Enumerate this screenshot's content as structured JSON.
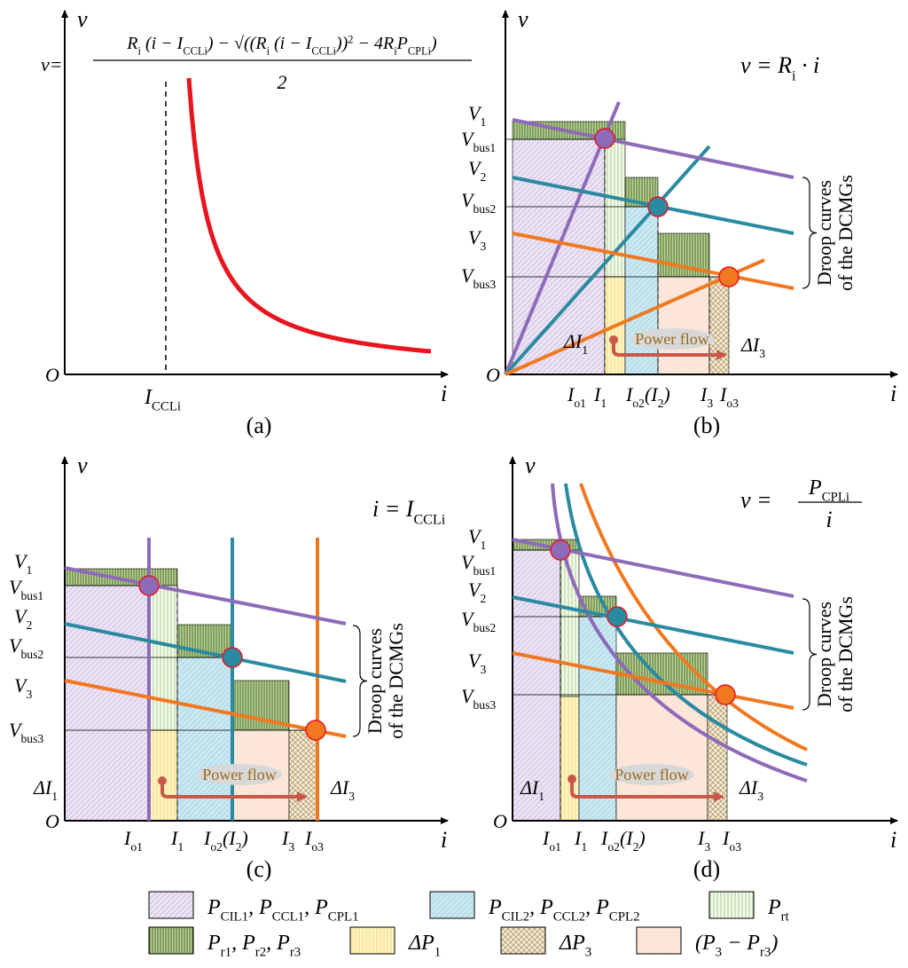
{
  "panels": [
    {
      "caption": "(a)",
      "y_axis": [
        {
          "t": "v"
        }
      ],
      "x_axis": [
        {
          "t": "i"
        }
      ],
      "origin": [
        {
          "t": "O"
        }
      ],
      "equation": {
        "lhs": [
          {
            "t": "v="
          }
        ],
        "numerator": [
          {
            "t": "R"
          },
          {
            "s": "i"
          },
          {
            "t": " (i − I"
          },
          {
            "s": "CCLi"
          },
          {
            "t": ") − √((R"
          },
          {
            "s": "i"
          },
          {
            "t": " (i − I"
          },
          {
            "s": "CCLi"
          },
          {
            "t": "))"
          },
          {
            "p": "2"
          },
          {
            "t": " − 4R"
          },
          {
            "s": "i"
          },
          {
            "t": "P"
          },
          {
            "s": "CPLi"
          },
          {
            "t": ")"
          }
        ],
        "denominator": [
          {
            "t": "2"
          }
        ]
      },
      "x_labels": [
        [
          {
            "t": "I"
          },
          {
            "s": "CCLi"
          }
        ]
      ]
    },
    {
      "caption": "(b)",
      "y_axis": [
        {
          "t": "v"
        }
      ],
      "x_axis": [
        {
          "t": "i"
        }
      ],
      "origin": [
        {
          "t": "O"
        }
      ],
      "equation": {
        "lhs": [
          {
            "t": "v = R"
          },
          {
            "s": "i"
          },
          {
            "t": " · i"
          }
        ]
      },
      "y_labels": [
        [
          {
            "t": "V"
          },
          {
            "s": "1"
          }
        ],
        [
          {
            "t": "V"
          },
          {
            "s": "bus1"
          }
        ],
        [
          {
            "t": "V"
          },
          {
            "s": "2"
          }
        ],
        [
          {
            "t": "V"
          },
          {
            "s": "bus2"
          }
        ],
        [
          {
            "t": "V"
          },
          {
            "s": "3"
          }
        ],
        [
          {
            "t": "V"
          },
          {
            "s": "bus3"
          }
        ]
      ],
      "x_labels": [
        [
          {
            "t": "I"
          },
          {
            "s": "o1"
          }
        ],
        [
          {
            "t": "I"
          },
          {
            "s": "1"
          }
        ],
        [
          {
            "t": "I"
          },
          {
            "s": "o2"
          },
          {
            "t": "(I"
          },
          {
            "s": "2"
          },
          {
            "t": ")"
          }
        ],
        [
          {
            "t": "I"
          },
          {
            "s": "3"
          }
        ],
        [
          {
            "t": "I"
          },
          {
            "s": "o3"
          }
        ]
      ],
      "delta_labels": [
        [
          {
            "t": "ΔI"
          },
          {
            "s": "1"
          }
        ],
        [
          {
            "t": "ΔI"
          },
          {
            "s": "3"
          }
        ]
      ],
      "power_flow": "Power flow",
      "droop_label": [
        "Droop curves",
        "of the DCMGs"
      ]
    },
    {
      "caption": "(c)",
      "y_axis": [
        {
          "t": "v"
        }
      ],
      "x_axis": [
        {
          "t": "i"
        }
      ],
      "origin": [
        {
          "t": "O"
        }
      ],
      "equation": {
        "lhs": [
          {
            "t": "i = I"
          },
          {
            "s": "CCLi"
          }
        ]
      },
      "y_labels": [
        [
          {
            "t": "V"
          },
          {
            "s": "1"
          }
        ],
        [
          {
            "t": "V"
          },
          {
            "s": "bus1"
          }
        ],
        [
          {
            "t": "V"
          },
          {
            "s": "2"
          }
        ],
        [
          {
            "t": "V"
          },
          {
            "s": "bus2"
          }
        ],
        [
          {
            "t": "V"
          },
          {
            "s": "3"
          }
        ],
        [
          {
            "t": "V"
          },
          {
            "s": "bus3"
          }
        ]
      ],
      "x_labels": [
        [
          {
            "t": "I"
          },
          {
            "s": "o1"
          }
        ],
        [
          {
            "t": "I"
          },
          {
            "s": "1"
          }
        ],
        [
          {
            "t": "I"
          },
          {
            "s": "o2"
          },
          {
            "t": "(I"
          },
          {
            "s": "2"
          },
          {
            "t": ")"
          }
        ],
        [
          {
            "t": "I"
          },
          {
            "s": "3"
          }
        ],
        [
          {
            "t": "I"
          },
          {
            "s": "o3"
          }
        ]
      ],
      "delta_labels": [
        [
          {
            "t": "ΔI"
          },
          {
            "s": "1"
          }
        ],
        [
          {
            "t": "ΔI"
          },
          {
            "s": "3"
          }
        ]
      ],
      "power_flow": "Power flow",
      "droop_label": [
        "Droop curves",
        "of the DCMGs"
      ]
    },
    {
      "caption": "(d)",
      "y_axis": [
        {
          "t": "v"
        }
      ],
      "x_axis": [
        {
          "t": "i"
        }
      ],
      "origin": [
        {
          "t": "O"
        }
      ],
      "equation": {
        "lhs": [
          {
            "t": "v ="
          }
        ],
        "numerator": [
          {
            "t": "P"
          },
          {
            "s": "CPLi"
          }
        ],
        "denominator": [
          {
            "t": "i"
          }
        ]
      },
      "y_labels": [
        [
          {
            "t": "V"
          },
          {
            "s": "1"
          }
        ],
        [
          {
            "t": "V"
          },
          {
            "s": "bus1"
          }
        ],
        [
          {
            "t": "V"
          },
          {
            "s": "2"
          }
        ],
        [
          {
            "t": "V"
          },
          {
            "s": "bus2"
          }
        ],
        [
          {
            "t": "V"
          },
          {
            "s": "3"
          }
        ],
        [
          {
            "t": "V"
          },
          {
            "s": "bus3"
          }
        ]
      ],
      "x_labels": [
        [
          {
            "t": "I"
          },
          {
            "s": "o1"
          }
        ],
        [
          {
            "t": "I"
          },
          {
            "s": "1"
          }
        ],
        [
          {
            "t": "I"
          },
          {
            "s": "o2"
          },
          {
            "t": "(I"
          },
          {
            "s": "2"
          },
          {
            "t": ")"
          }
        ],
        [
          {
            "t": "I"
          },
          {
            "s": "3"
          }
        ],
        [
          {
            "t": "I"
          },
          {
            "s": "o3"
          }
        ]
      ],
      "delta_labels": [
        [
          {
            "t": "ΔI"
          },
          {
            "s": "1"
          }
        ],
        [
          {
            "t": "ΔI"
          },
          {
            "s": "3"
          }
        ]
      ],
      "power_flow": "Power flow",
      "droop_label": [
        "Droop curves",
        "of the DCMGs"
      ]
    }
  ],
  "legend": [
    [
      {
        "t": "P"
      },
      {
        "s": "CIL1"
      },
      {
        "t": ", P"
      },
      {
        "s": "CCL1"
      },
      {
        "t": ", P"
      },
      {
        "s": "CPL1"
      }
    ],
    [
      {
        "t": "P"
      },
      {
        "s": "CIL2"
      },
      {
        "t": ", P"
      },
      {
        "s": "CCL2"
      },
      {
        "t": ", P"
      },
      {
        "s": "CPL2"
      }
    ],
    [
      {
        "t": "P"
      },
      {
        "s": "rt"
      }
    ],
    [
      {
        "t": "P"
      },
      {
        "s": "r1"
      },
      {
        "t": ", P"
      },
      {
        "s": "r2"
      },
      {
        "t": ", P"
      },
      {
        "s": "r3"
      }
    ],
    [
      {
        "t": "ΔP"
      },
      {
        "s": "1"
      }
    ],
    [
      {
        "t": "ΔP"
      },
      {
        "s": "3"
      }
    ],
    [
      {
        "t": "(P"
      },
      {
        "s": "3"
      },
      {
        "t": " − P"
      },
      {
        "s": "r3"
      },
      {
        "t": ")"
      }
    ]
  ]
}
